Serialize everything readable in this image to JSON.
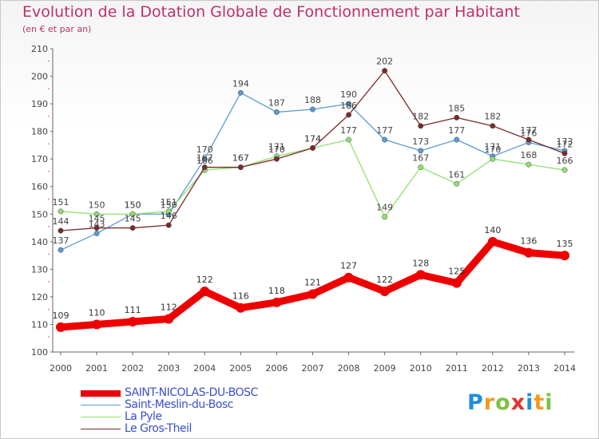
{
  "header": {
    "title": "Evolution de la Dotation Globale de Fonctionnement par Habitant",
    "subtitle": "(en € et par an)"
  },
  "logo": {
    "text": "Proxiti"
  },
  "chart_data": {
    "type": "line",
    "title": "Evolution de la Dotation Globale de Fonctionnement par Habitant",
    "subtitle": "(en € et par an)",
    "x": [
      2000,
      2001,
      2002,
      2003,
      2004,
      2005,
      2006,
      2007,
      2008,
      2009,
      2010,
      2011,
      2012,
      2013,
      2014
    ],
    "ylim": [
      100,
      210
    ],
    "yticks": [
      100,
      110,
      120,
      130,
      140,
      150,
      160,
      170,
      180,
      190,
      200,
      210
    ],
    "grid": false,
    "legend": "bottom-left",
    "series": [
      {
        "name": "SAINT-NICOLAS-DU-BOSC",
        "color": "#ee0000",
        "values": [
          109,
          110,
          111,
          112,
          122,
          116,
          118,
          121,
          127,
          122,
          128,
          125,
          140,
          136,
          135
        ]
      },
      {
        "name": "Saint-Meslin-du-Bosc",
        "color": "#5b9bd5",
        "values": [
          137,
          143,
          150,
          150,
          170,
          194,
          187,
          188,
          190,
          177,
          173,
          177,
          171,
          176,
          173
        ]
      },
      {
        "name": "La Pyle",
        "color": "#90e070",
        "values": [
          151,
          150,
          150,
          151,
          166,
          167,
          171,
          174,
          177,
          149,
          167,
          161,
          170,
          168,
          166
        ]
      },
      {
        "name": "Le Gros-Theil",
        "color": "#7a2a2a",
        "values": [
          144,
          145,
          145,
          146,
          167,
          167,
          170,
          174,
          186,
          202,
          182,
          185,
          182,
          177,
          172
        ]
      }
    ]
  }
}
